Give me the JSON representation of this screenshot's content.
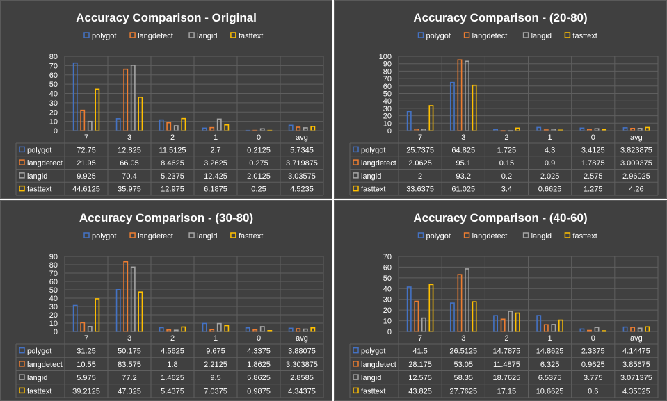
{
  "colors": {
    "polygot": "#4472c4",
    "langdetect": "#ed7d31",
    "langid": "#a5a5a5",
    "fasttext": "#ffc000",
    "background": "#404040",
    "grid": "#5f5f5f",
    "text": "#ffffff"
  },
  "chart_data": [
    {
      "type": "bar",
      "title": "Accuracy Comparison - Original",
      "legend_position": "top",
      "grid": true,
      "data_table": true,
      "ylim": [
        0,
        80
      ],
      "yticks": [
        0,
        10,
        20,
        30,
        40,
        50,
        60,
        70,
        80
      ],
      "categories": [
        "7",
        "3",
        "2",
        "1",
        "0",
        "avg"
      ],
      "series": [
        {
          "name": "polygot",
          "values": [
            "72.75",
            "12.825",
            "11.5125",
            "2.7",
            "0.2125",
            "5.7345"
          ]
        },
        {
          "name": "langdetect",
          "values": [
            "21.95",
            "66.05",
            "8.4625",
            "3.2625",
            "0.275",
            "3.719875"
          ]
        },
        {
          "name": "langid",
          "values": [
            "9.925",
            "70.4",
            "5.2375",
            "12.425",
            "2.0125",
            "3.03575"
          ]
        },
        {
          "name": "fasttext",
          "values": [
            "44.6125",
            "35.975",
            "12.975",
            "6.1875",
            "0.25",
            "4.5235"
          ]
        }
      ]
    },
    {
      "type": "bar",
      "title": "Accuracy Comparison - (20-80)",
      "legend_position": "top",
      "grid": true,
      "data_table": true,
      "ylim": [
        0,
        100
      ],
      "yticks": [
        0,
        10,
        20,
        30,
        40,
        50,
        60,
        70,
        80,
        90,
        100
      ],
      "categories": [
        "7",
        "3",
        "2",
        "1",
        "0",
        "avg"
      ],
      "series": [
        {
          "name": "polygot",
          "values": [
            "25.7375",
            "64.825",
            "1.725",
            "4.3",
            "3.4125",
            "3.823875"
          ]
        },
        {
          "name": "langdetect",
          "values": [
            "2.0625",
            "95.1",
            "0.15",
            "0.9",
            "1.7875",
            "3.009375"
          ]
        },
        {
          "name": "langid",
          "values": [
            "2",
            "93.2",
            "0.2",
            "2.025",
            "2.575",
            "2.96025"
          ]
        },
        {
          "name": "fasttext",
          "values": [
            "33.6375",
            "61.025",
            "3.4",
            "0.6625",
            "1.275",
            "4.26"
          ]
        }
      ]
    },
    {
      "type": "bar",
      "title": "Accuracy Comparison - (30-80)",
      "legend_position": "top",
      "grid": true,
      "data_table": true,
      "ylim": [
        0,
        90
      ],
      "yticks": [
        0,
        10,
        20,
        30,
        40,
        50,
        60,
        70,
        80,
        90
      ],
      "categories": [
        "7",
        "3",
        "2",
        "1",
        "0",
        "avg"
      ],
      "series": [
        {
          "name": "polygot",
          "values": [
            "31.25",
            "50.175",
            "4.5625",
            "9.675",
            "4.3375",
            "3.88075"
          ]
        },
        {
          "name": "langdetect",
          "values": [
            "10.55",
            "83.575",
            "1.8",
            "2.2125",
            "1.8625",
            "3.303875"
          ]
        },
        {
          "name": "langid",
          "values": [
            "5.975",
            "77.2",
            "1.4625",
            "9.5",
            "5.8625",
            "2.8585"
          ]
        },
        {
          "name": "fasttext",
          "values": [
            "39.2125",
            "47.325",
            "5.4375",
            "7.0375",
            "0.9875",
            "4.34375"
          ]
        }
      ]
    },
    {
      "type": "bar",
      "title": "Accuracy Comparison - (40-60)",
      "legend_position": "top",
      "grid": true,
      "data_table": true,
      "ylim": [
        0,
        70
      ],
      "yticks": [
        0,
        10,
        20,
        30,
        40,
        50,
        60,
        70
      ],
      "categories": [
        "7",
        "3",
        "2",
        "1",
        "0",
        "avg"
      ],
      "series": [
        {
          "name": "polygot",
          "values": [
            "41.5",
            "26.5125",
            "14.7875",
            "14.8625",
            "2.3375",
            "4.14475"
          ]
        },
        {
          "name": "langdetect",
          "values": [
            "28.175",
            "53.05",
            "11.4875",
            "6.325",
            "0.9625",
            "3.85675"
          ]
        },
        {
          "name": "langid",
          "values": [
            "12.575",
            "58.35",
            "18.7625",
            "6.5375",
            "3.775",
            "3.071375"
          ]
        },
        {
          "name": "fasttext",
          "values": [
            "43.825",
            "27.7625",
            "17.15",
            "10.6625",
            "0.6",
            "4.35025"
          ]
        }
      ]
    }
  ]
}
